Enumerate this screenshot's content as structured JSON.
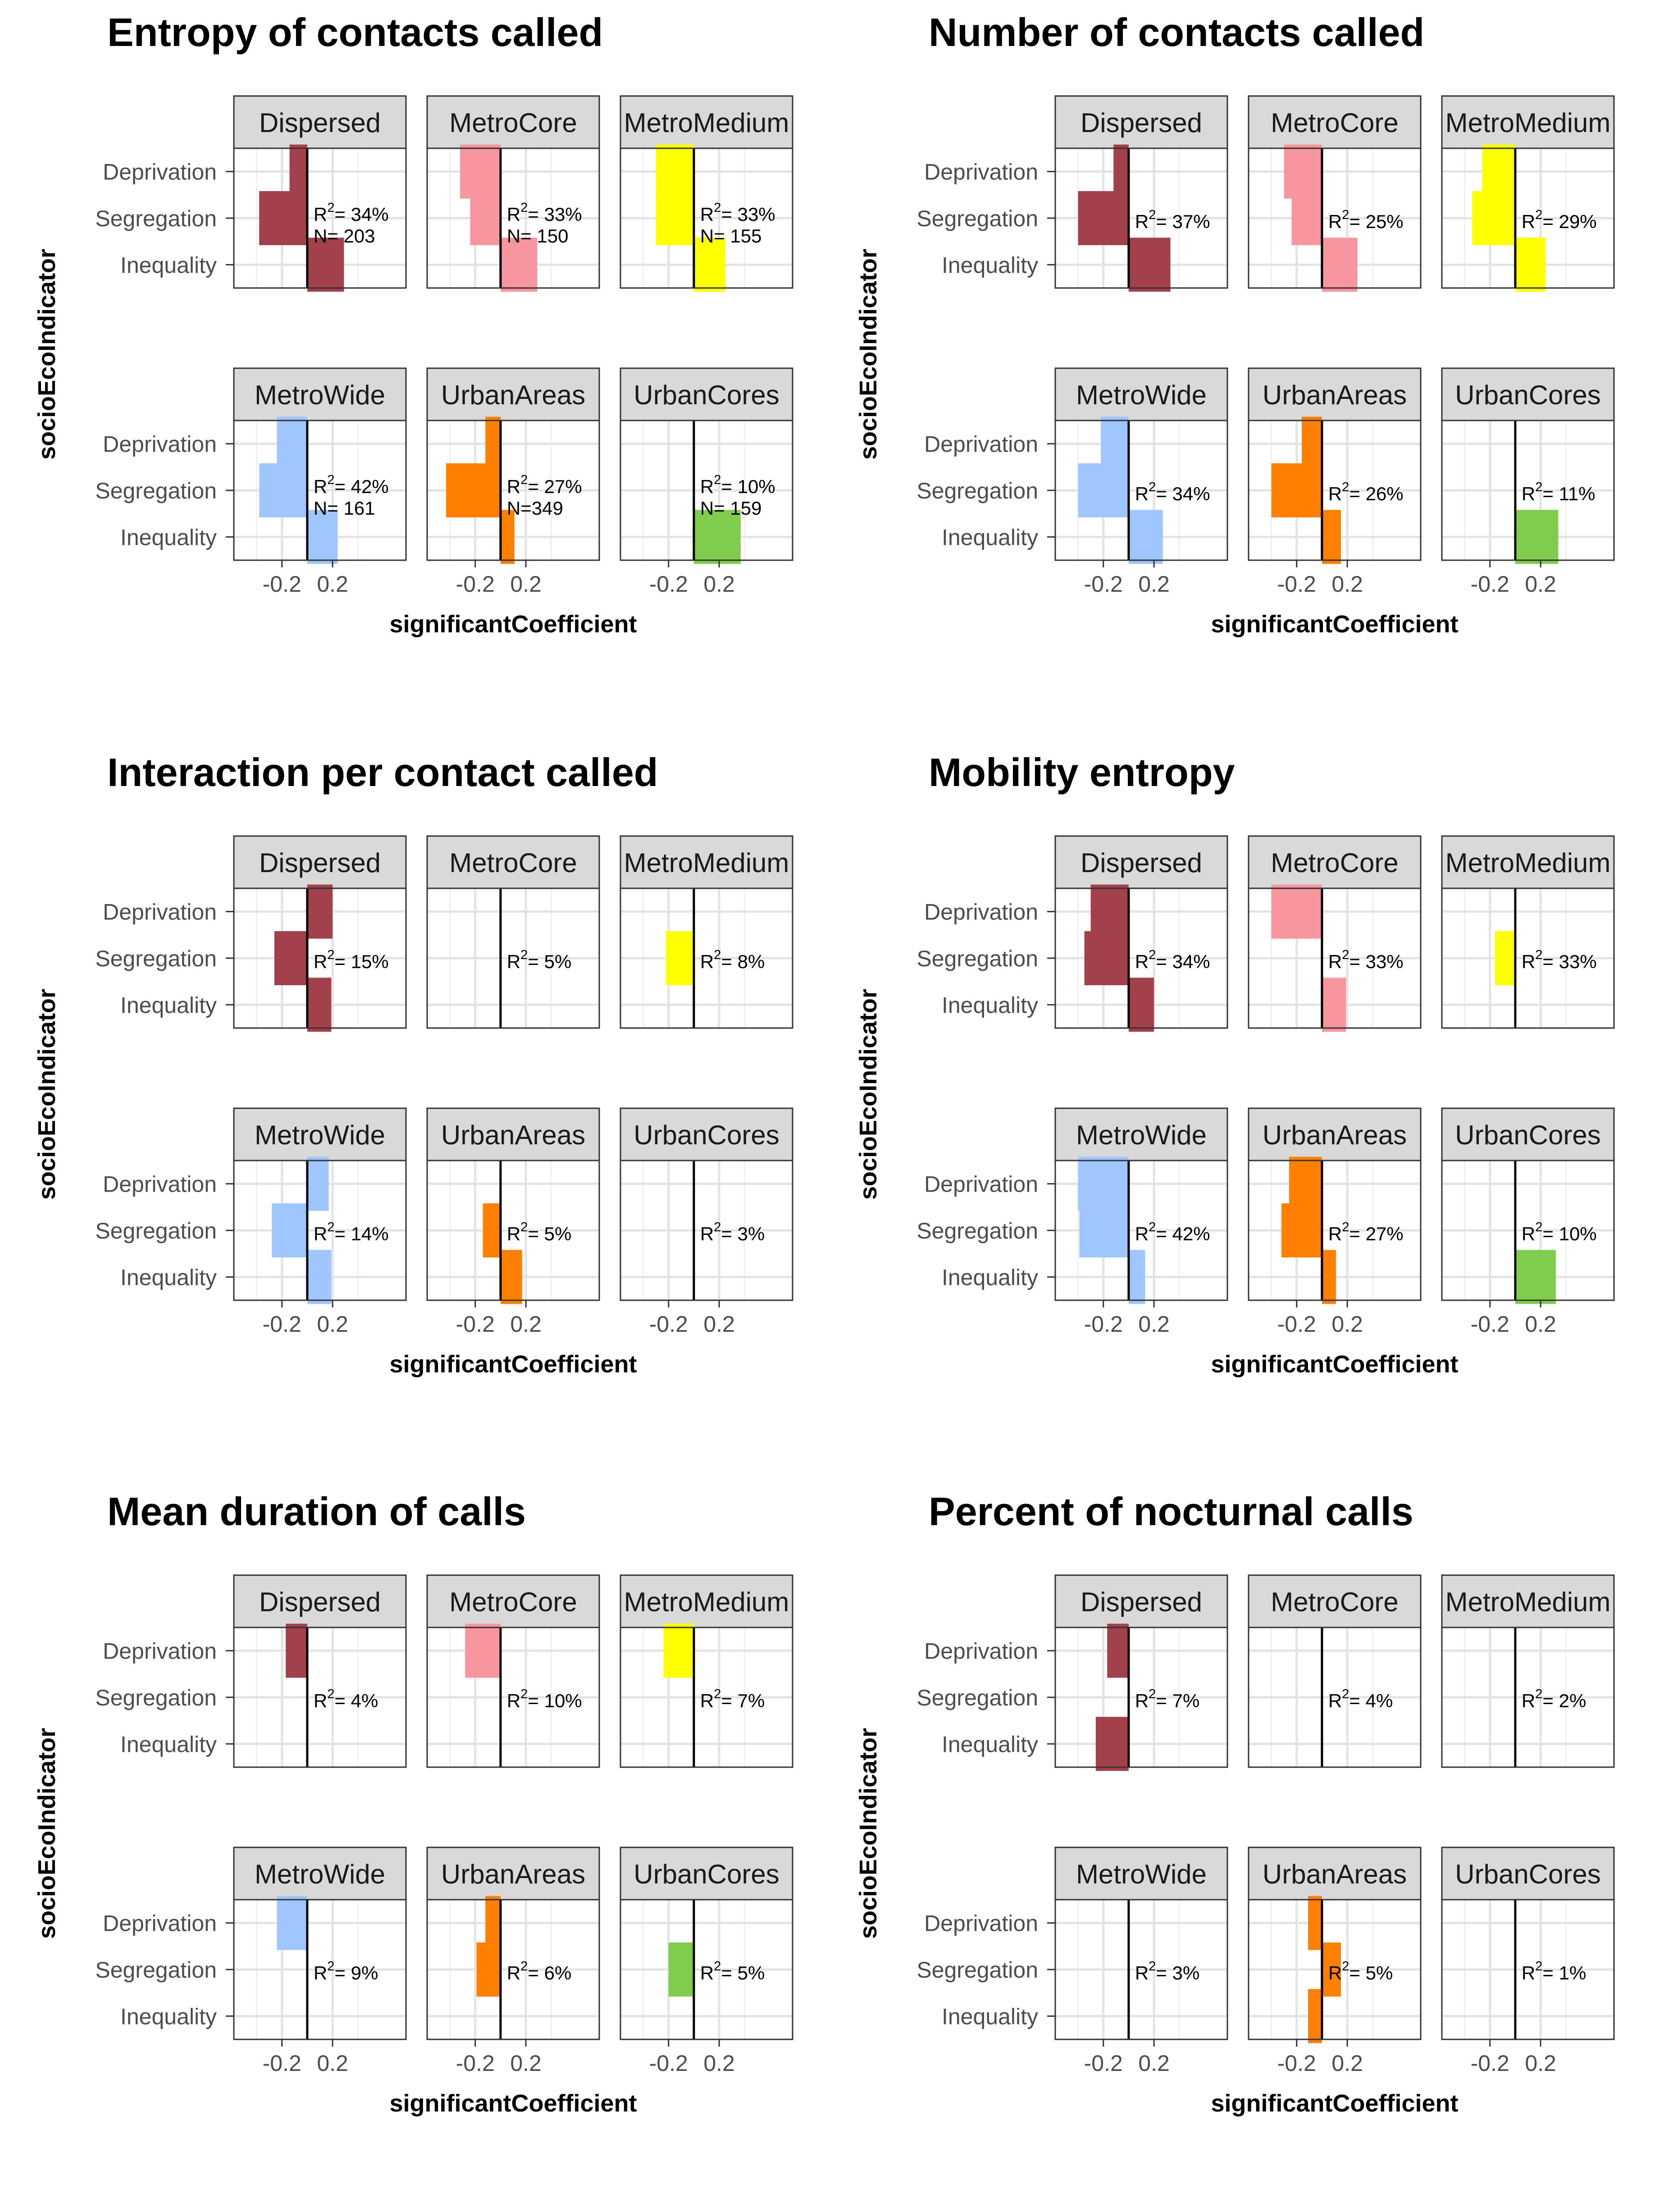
{
  "shared": {
    "panels": [
      "Dispersed",
      "MetroCore",
      "MetroMedium",
      "MetroWide",
      "UrbanAreas",
      "UrbanCores"
    ],
    "indicators": [
      "Deprivation",
      "Segregation",
      "Inequality"
    ],
    "xlabel": "significantCoefficient",
    "ylabel": "socioEcoIndicator",
    "x_ticks": [
      -0.2,
      0.2
    ],
    "x_tick_labels": [
      "-0.2",
      "0.2"
    ],
    "xlim": [
      -0.58,
      0.78
    ],
    "colors": {
      "Dispersed": "#a2414b",
      "MetroCore": "#f8969f",
      "MetroMedium": "#ffff00",
      "MetroWide": "#9fc6ff",
      "UrbanAreas": "#ff8000",
      "UrbanCores": "#80cc4c"
    }
  },
  "chart_data": [
    {
      "type": "bar",
      "title": "Entropy of contacts called",
      "xlabel": "significantCoefficient",
      "ylabel": "socioEcoIndicator",
      "categories": [
        "Deprivation",
        "Segregation",
        "Inequality"
      ],
      "xlim": [
        -0.58,
        0.78
      ],
      "panels": [
        {
          "name": "Dispersed",
          "values": [
            -0.14,
            -0.38,
            0.29
          ],
          "stat": "R2= 34%",
          "n": "N=  203"
        },
        {
          "name": "MetroCore",
          "values": [
            -0.32,
            -0.24,
            0.29
          ],
          "stat": "R2= 33%",
          "n": "N=  150"
        },
        {
          "name": "MetroMedium",
          "values": [
            -0.3,
            -0.3,
            0.25
          ],
          "stat": "R2= 33%",
          "n": "N=  155"
        },
        {
          "name": "MetroWide",
          "values": [
            -0.24,
            -0.38,
            0.24
          ],
          "stat": "R2= 42%",
          "n": "N=  161"
        },
        {
          "name": "UrbanAreas",
          "values": [
            -0.12,
            -0.43,
            0.11
          ],
          "stat": "R2= 27%",
          "n": "N=349"
        },
        {
          "name": "UrbanCores",
          "values": [
            null,
            null,
            0.37
          ],
          "stat": "R2= 10%",
          "n": "N=  159"
        }
      ]
    },
    {
      "type": "bar",
      "title": "Number of contacts called",
      "xlabel": "significantCoefficient",
      "ylabel": "socioEcoIndicator",
      "categories": [
        "Deprivation",
        "Segregation",
        "Inequality"
      ],
      "xlim": [
        -0.58,
        0.78
      ],
      "panels": [
        {
          "name": "Dispersed",
          "values": [
            -0.12,
            -0.4,
            0.33
          ],
          "stat": "R2= 37%"
        },
        {
          "name": "MetroCore",
          "values": [
            -0.3,
            -0.24,
            0.28
          ],
          "stat": "R2= 25%"
        },
        {
          "name": "MetroMedium",
          "values": [
            -0.26,
            -0.34,
            0.24
          ],
          "stat": "R2= 29%"
        },
        {
          "name": "MetroWide",
          "values": [
            -0.22,
            -0.4,
            0.27
          ],
          "stat": "R2= 34%"
        },
        {
          "name": "UrbanAreas",
          "values": [
            -0.16,
            -0.4,
            0.15
          ],
          "stat": "R2= 26%"
        },
        {
          "name": "UrbanCores",
          "values": [
            null,
            null,
            0.34
          ],
          "stat": "R2= 11%"
        }
      ]
    },
    {
      "type": "bar",
      "title": "Interaction per contact called",
      "xlabel": "significantCoefficient",
      "ylabel": "socioEcoIndicator",
      "categories": [
        "Deprivation",
        "Segregation",
        "Inequality"
      ],
      "xlim": [
        -0.58,
        0.78
      ],
      "panels": [
        {
          "name": "Dispersed",
          "values": [
            0.2,
            -0.26,
            0.19
          ],
          "stat": "R2= 15%"
        },
        {
          "name": "MetroCore",
          "values": [
            null,
            null,
            null
          ],
          "stat": "R2= 5%"
        },
        {
          "name": "MetroMedium",
          "values": [
            null,
            -0.22,
            null
          ],
          "stat": "R2= 8%"
        },
        {
          "name": "MetroWide",
          "values": [
            0.17,
            -0.28,
            0.19
          ],
          "stat": "R2= 14%"
        },
        {
          "name": "UrbanAreas",
          "values": [
            null,
            -0.14,
            0.17
          ],
          "stat": "R2= 5%"
        },
        {
          "name": "UrbanCores",
          "values": [
            null,
            null,
            null
          ],
          "stat": "R2= 3%"
        }
      ]
    },
    {
      "type": "bar",
      "title": "Mobility entropy",
      "xlabel": "significantCoefficient",
      "ylabel": "socioEcoIndicator",
      "categories": [
        "Deprivation",
        "Segregation",
        "Inequality"
      ],
      "xlim": [
        -0.58,
        0.78
      ],
      "panels": [
        {
          "name": "Dispersed",
          "values": [
            -0.3,
            -0.35,
            0.2
          ],
          "stat": "R2= 34%"
        },
        {
          "name": "MetroCore",
          "values": [
            -0.4,
            null,
            0.19
          ],
          "stat": "R2= 33%"
        },
        {
          "name": "MetroMedium",
          "values": [
            null,
            -0.16,
            null
          ],
          "stat": "R2= 33%"
        },
        {
          "name": "MetroWide",
          "values": [
            -0.4,
            -0.39,
            0.13
          ],
          "stat": "R2= 42%"
        },
        {
          "name": "UrbanAreas",
          "values": [
            -0.26,
            -0.32,
            0.11
          ],
          "stat": "R2= 27%"
        },
        {
          "name": "UrbanCores",
          "values": [
            null,
            null,
            0.32
          ],
          "stat": "R2= 10%"
        }
      ]
    },
    {
      "type": "bar",
      "title": "Mean duration of calls",
      "xlabel": "significantCoefficient",
      "ylabel": "socioEcoIndicator",
      "categories": [
        "Deprivation",
        "Segregation",
        "Inequality"
      ],
      "xlim": [
        -0.58,
        0.78
      ],
      "panels": [
        {
          "name": "Dispersed",
          "values": [
            -0.17,
            null,
            null
          ],
          "stat": "R2= 4%"
        },
        {
          "name": "MetroCore",
          "values": [
            -0.28,
            null,
            null
          ],
          "stat": "R2= 10%"
        },
        {
          "name": "MetroMedium",
          "values": [
            -0.24,
            null,
            null
          ],
          "stat": "R2= 7%"
        },
        {
          "name": "MetroWide",
          "values": [
            -0.24,
            null,
            null
          ],
          "stat": "R2= 9%"
        },
        {
          "name": "UrbanAreas",
          "values": [
            -0.12,
            -0.19,
            null
          ],
          "stat": "R2= 6%"
        },
        {
          "name": "UrbanCores",
          "values": [
            null,
            -0.2,
            null
          ],
          "stat": "R2= 5%"
        }
      ]
    },
    {
      "type": "bar",
      "title": "Percent of nocturnal calls",
      "xlabel": "significantCoefficient",
      "ylabel": "socioEcoIndicator",
      "categories": [
        "Deprivation",
        "Segregation",
        "Inequality"
      ],
      "xlim": [
        -0.58,
        0.78
      ],
      "panels": [
        {
          "name": "Dispersed",
          "values": [
            -0.17,
            null,
            -0.26
          ],
          "stat": "R2= 7%"
        },
        {
          "name": "MetroCore",
          "values": [
            null,
            null,
            null
          ],
          "stat": "R2= 4%"
        },
        {
          "name": "MetroMedium",
          "values": [
            null,
            null,
            null
          ],
          "stat": "R2= 2%"
        },
        {
          "name": "MetroWide",
          "values": [
            null,
            null,
            null
          ],
          "stat": "R2= 3%"
        },
        {
          "name": "UrbanAreas",
          "values": [
            -0.11,
            0.15,
            -0.11
          ],
          "stat": "R2= 5%"
        },
        {
          "name": "UrbanCores",
          "values": [
            null,
            null,
            null
          ],
          "stat": "R2= 1%"
        }
      ]
    }
  ]
}
